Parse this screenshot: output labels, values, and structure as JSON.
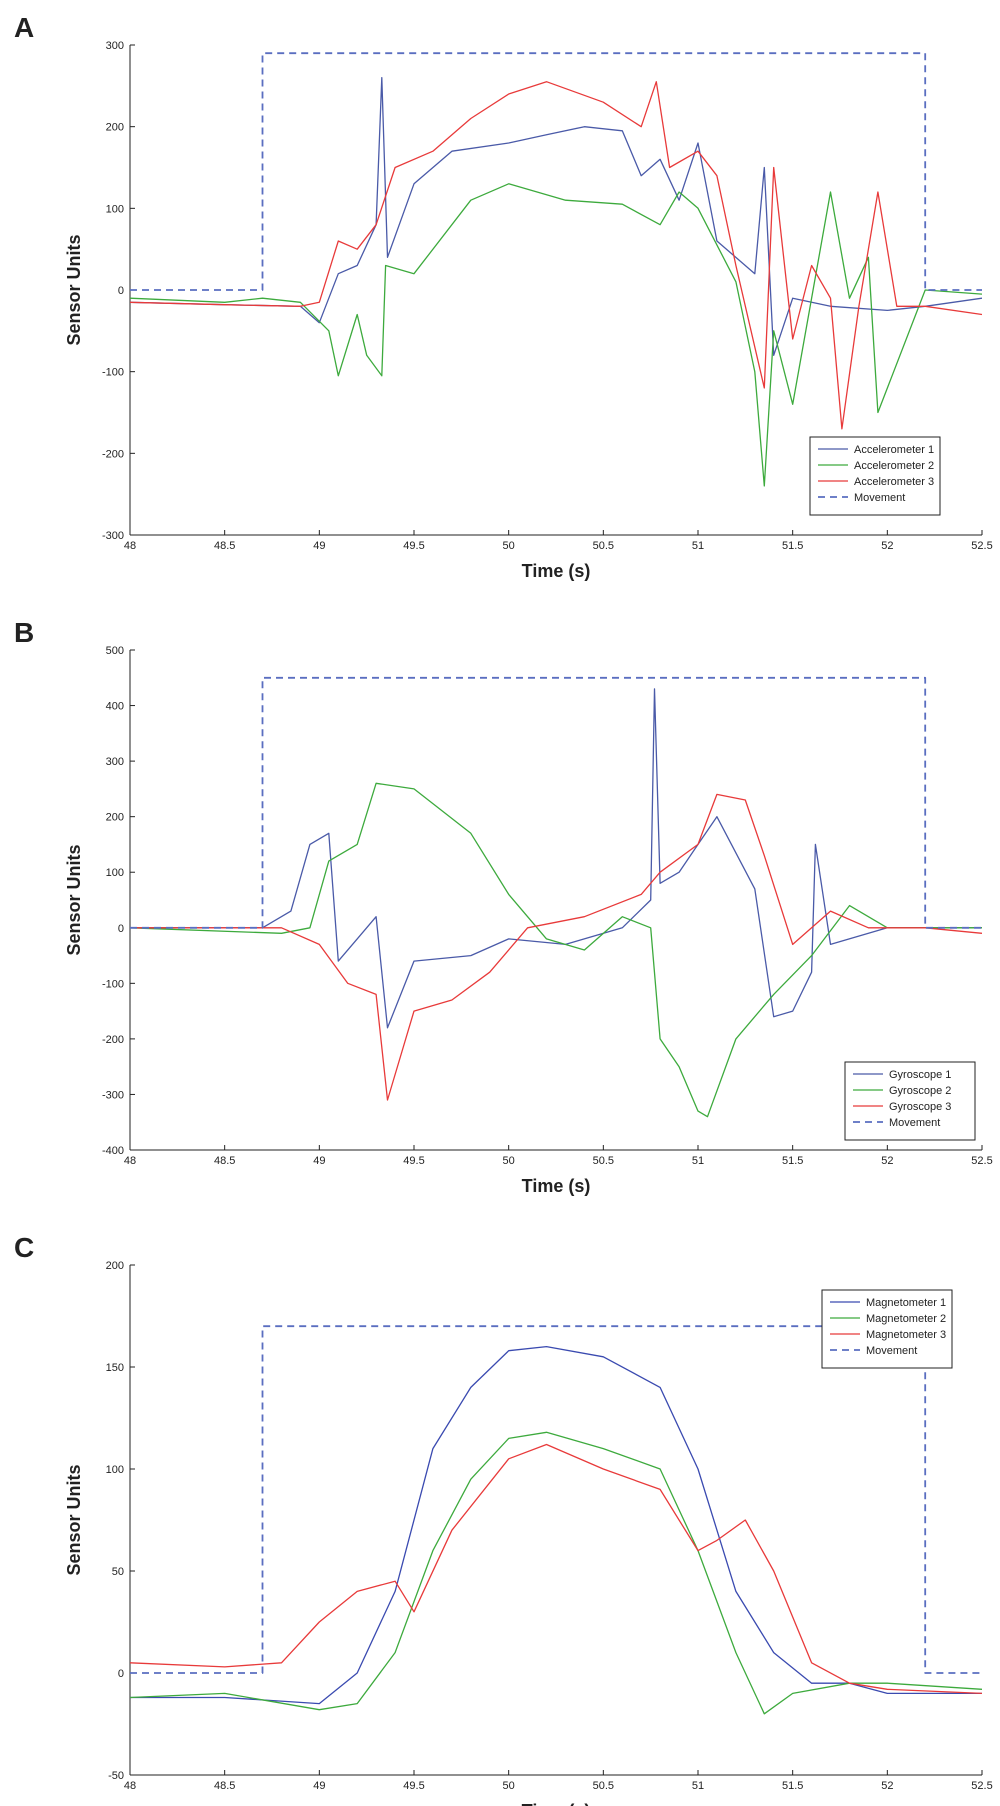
{
  "chart_data": [
    {
      "type": "line",
      "panel_label": "A",
      "xlabel": "Time (s)",
      "ylabel": "Sensor Units",
      "xlim": [
        48,
        52.5
      ],
      "ylim": [
        -300,
        300
      ],
      "xticks": [
        "48",
        "48.5",
        "49",
        "49.5",
        "50",
        "50.5",
        "51",
        "51.5",
        "52",
        "52.5"
      ],
      "yticks": [
        "-300",
        "-200",
        "-100",
        "0",
        "100",
        "200",
        "300"
      ],
      "legend_position": "bottom-right",
      "series": [
        {
          "name": "Accelerometer 1",
          "color": "#4a5aa8",
          "dashed": false,
          "x": [
            48,
            48.5,
            48.9,
            49.0,
            49.1,
            49.2,
            49.3,
            49.33,
            49.36,
            49.5,
            49.7,
            50.0,
            50.2,
            50.4,
            50.6,
            50.7,
            50.8,
            50.9,
            51.0,
            51.1,
            51.3,
            51.35,
            51.4,
            51.5,
            51.7,
            52.0,
            52.2,
            52.5
          ],
          "y": [
            -15,
            -18,
            -20,
            -40,
            20,
            30,
            80,
            260,
            40,
            130,
            170,
            180,
            190,
            200,
            195,
            140,
            160,
            110,
            180,
            60,
            20,
            150,
            -80,
            -10,
            -20,
            -25,
            -20,
            -10
          ]
        },
        {
          "name": "Accelerometer 2",
          "color": "#3daa3d",
          "dashed": false,
          "x": [
            48,
            48.5,
            48.7,
            48.9,
            49.05,
            49.1,
            49.2,
            49.25,
            49.33,
            49.35,
            49.5,
            49.8,
            50.0,
            50.3,
            50.6,
            50.8,
            50.9,
            51.0,
            51.2,
            51.3,
            51.35,
            51.4,
            51.5,
            51.6,
            51.7,
            51.8,
            51.9,
            51.95,
            52.2,
            52.5
          ],
          "y": [
            -10,
            -15,
            -10,
            -15,
            -50,
            -105,
            -30,
            -80,
            -105,
            30,
            20,
            110,
            130,
            110,
            105,
            80,
            120,
            100,
            10,
            -100,
            -240,
            -50,
            -140,
            -10,
            120,
            -10,
            40,
            -150,
            0,
            -5
          ]
        },
        {
          "name": "Accelerometer 3",
          "color": "#e83a3a",
          "dashed": false,
          "x": [
            48,
            48.5,
            48.9,
            49.0,
            49.1,
            49.2,
            49.3,
            49.4,
            49.6,
            49.8,
            50.0,
            50.2,
            50.5,
            50.7,
            50.78,
            50.85,
            51.0,
            51.1,
            51.2,
            51.35,
            51.4,
            51.5,
            51.6,
            51.7,
            51.76,
            51.85,
            51.95,
            52.05,
            52.2,
            52.5
          ],
          "y": [
            -15,
            -18,
            -20,
            -15,
            60,
            50,
            80,
            150,
            170,
            210,
            240,
            255,
            230,
            200,
            255,
            150,
            170,
            140,
            30,
            -120,
            150,
            -60,
            30,
            -10,
            -170,
            -20,
            120,
            -20,
            -20,
            -30
          ]
        },
        {
          "name": "Movement",
          "color": "#5a6ec0",
          "dashed": true,
          "x": [
            48,
            48.7,
            48.7,
            52.2,
            52.2,
            52.5
          ],
          "y": [
            0,
            0,
            290,
            290,
            0,
            0
          ]
        }
      ]
    },
    {
      "type": "line",
      "panel_label": "B",
      "xlabel": "Time (s)",
      "ylabel": "Sensor Units",
      "xlim": [
        48,
        52.5
      ],
      "ylim": [
        -400,
        500
      ],
      "xticks": [
        "48",
        "48.5",
        "49",
        "49.5",
        "50",
        "50.5",
        "51",
        "51.5",
        "52",
        "52.5"
      ],
      "yticks": [
        "-400",
        "-300",
        "-200",
        "-100",
        "0",
        "100",
        "200",
        "300",
        "400",
        "500"
      ],
      "legend_position": "bottom-right",
      "series": [
        {
          "name": "Gyroscope 1",
          "color": "#4a5aa8",
          "dashed": false,
          "x": [
            48,
            48.7,
            48.85,
            48.95,
            49.05,
            49.1,
            49.2,
            49.3,
            49.36,
            49.5,
            49.8,
            50.0,
            50.3,
            50.6,
            50.75,
            50.77,
            50.8,
            50.9,
            51.0,
            51.1,
            51.3,
            51.4,
            51.5,
            51.6,
            51.62,
            51.7,
            52.0,
            52.5
          ],
          "y": [
            0,
            0,
            30,
            150,
            170,
            -60,
            -20,
            20,
            -180,
            -60,
            -50,
            -20,
            -30,
            0,
            50,
            430,
            80,
            100,
            150,
            200,
            70,
            -160,
            -150,
            -80,
            150,
            -30,
            0,
            0
          ]
        },
        {
          "name": "Gyroscope 2",
          "color": "#3daa3d",
          "dashed": false,
          "x": [
            48,
            48.8,
            48.95,
            49.05,
            49.2,
            49.3,
            49.5,
            49.8,
            50.0,
            50.2,
            50.4,
            50.6,
            50.75,
            50.8,
            50.9,
            51.0,
            51.05,
            51.2,
            51.4,
            51.6,
            51.8,
            52.0,
            52.5
          ],
          "y": [
            0,
            -10,
            0,
            120,
            150,
            260,
            250,
            170,
            60,
            -20,
            -40,
            20,
            0,
            -200,
            -250,
            -330,
            -340,
            -200,
            -120,
            -50,
            40,
            0,
            0
          ]
        },
        {
          "name": "Gyroscope 3",
          "color": "#e83a3a",
          "dashed": false,
          "x": [
            48,
            48.8,
            49.0,
            49.15,
            49.3,
            49.36,
            49.5,
            49.7,
            49.9,
            50.1,
            50.4,
            50.7,
            50.8,
            51.0,
            51.1,
            51.25,
            51.35,
            51.5,
            51.7,
            51.9,
            52.2,
            52.5
          ],
          "y": [
            0,
            0,
            -30,
            -100,
            -120,
            -310,
            -150,
            -130,
            -80,
            0,
            20,
            60,
            100,
            150,
            240,
            230,
            130,
            -30,
            30,
            0,
            0,
            -10
          ]
        },
        {
          "name": "Movement",
          "color": "#5a6ec0",
          "dashed": true,
          "x": [
            48,
            48.7,
            48.7,
            52.2,
            52.2,
            52.5
          ],
          "y": [
            0,
            0,
            450,
            450,
            0,
            0
          ]
        }
      ]
    },
    {
      "type": "line",
      "panel_label": "C",
      "xlabel": "Time (s)",
      "ylabel": "Sensor Units",
      "xlim": [
        48,
        52.5
      ],
      "ylim": [
        -50,
        200
      ],
      "xticks": [
        "48",
        "48.5",
        "49",
        "49.5",
        "50",
        "50.5",
        "51",
        "51.5",
        "52",
        "52.5"
      ],
      "yticks": [
        "-50",
        "0",
        "50",
        "100",
        "150",
        "200"
      ],
      "legend_position": "top-right",
      "series": [
        {
          "name": "Magnetometer 1",
          "color": "#3a4ab0",
          "dashed": false,
          "x": [
            48,
            48.5,
            49.0,
            49.2,
            49.4,
            49.6,
            49.8,
            50.0,
            50.2,
            50.5,
            50.8,
            51.0,
            51.2,
            51.4,
            51.6,
            51.8,
            52.0,
            52.5
          ],
          "y": [
            -12,
            -12,
            -15,
            0,
            40,
            110,
            140,
            158,
            160,
            155,
            140,
            100,
            40,
            10,
            -5,
            -5,
            -10,
            -10
          ]
        },
        {
          "name": "Magnetometer 2",
          "color": "#3daa3d",
          "dashed": false,
          "x": [
            48,
            48.5,
            49.0,
            49.2,
            49.4,
            49.6,
            49.8,
            50.0,
            50.2,
            50.5,
            50.8,
            51.0,
            51.2,
            51.35,
            51.5,
            51.8,
            52.0,
            52.5
          ],
          "y": [
            -12,
            -10,
            -18,
            -15,
            10,
            60,
            95,
            115,
            118,
            110,
            100,
            60,
            10,
            -20,
            -10,
            -5,
            -5,
            -8
          ]
        },
        {
          "name": "Magnetometer 3",
          "color": "#e83a3a",
          "dashed": false,
          "x": [
            48,
            48.5,
            48.8,
            49.0,
            49.2,
            49.4,
            49.5,
            49.7,
            50.0,
            50.2,
            50.5,
            50.8,
            51.0,
            51.1,
            51.25,
            51.4,
            51.6,
            51.8,
            52.0,
            52.5
          ],
          "y": [
            5,
            3,
            5,
            25,
            40,
            45,
            30,
            70,
            105,
            112,
            100,
            90,
            60,
            65,
            75,
            50,
            5,
            -5,
            -8,
            -10
          ]
        },
        {
          "name": "Movement",
          "color": "#5a6ec0",
          "dashed": true,
          "x": [
            48,
            48.7,
            48.7,
            52.2,
            52.2,
            52.5
          ],
          "y": [
            0,
            0,
            170,
            170,
            0,
            0
          ]
        }
      ]
    }
  ]
}
